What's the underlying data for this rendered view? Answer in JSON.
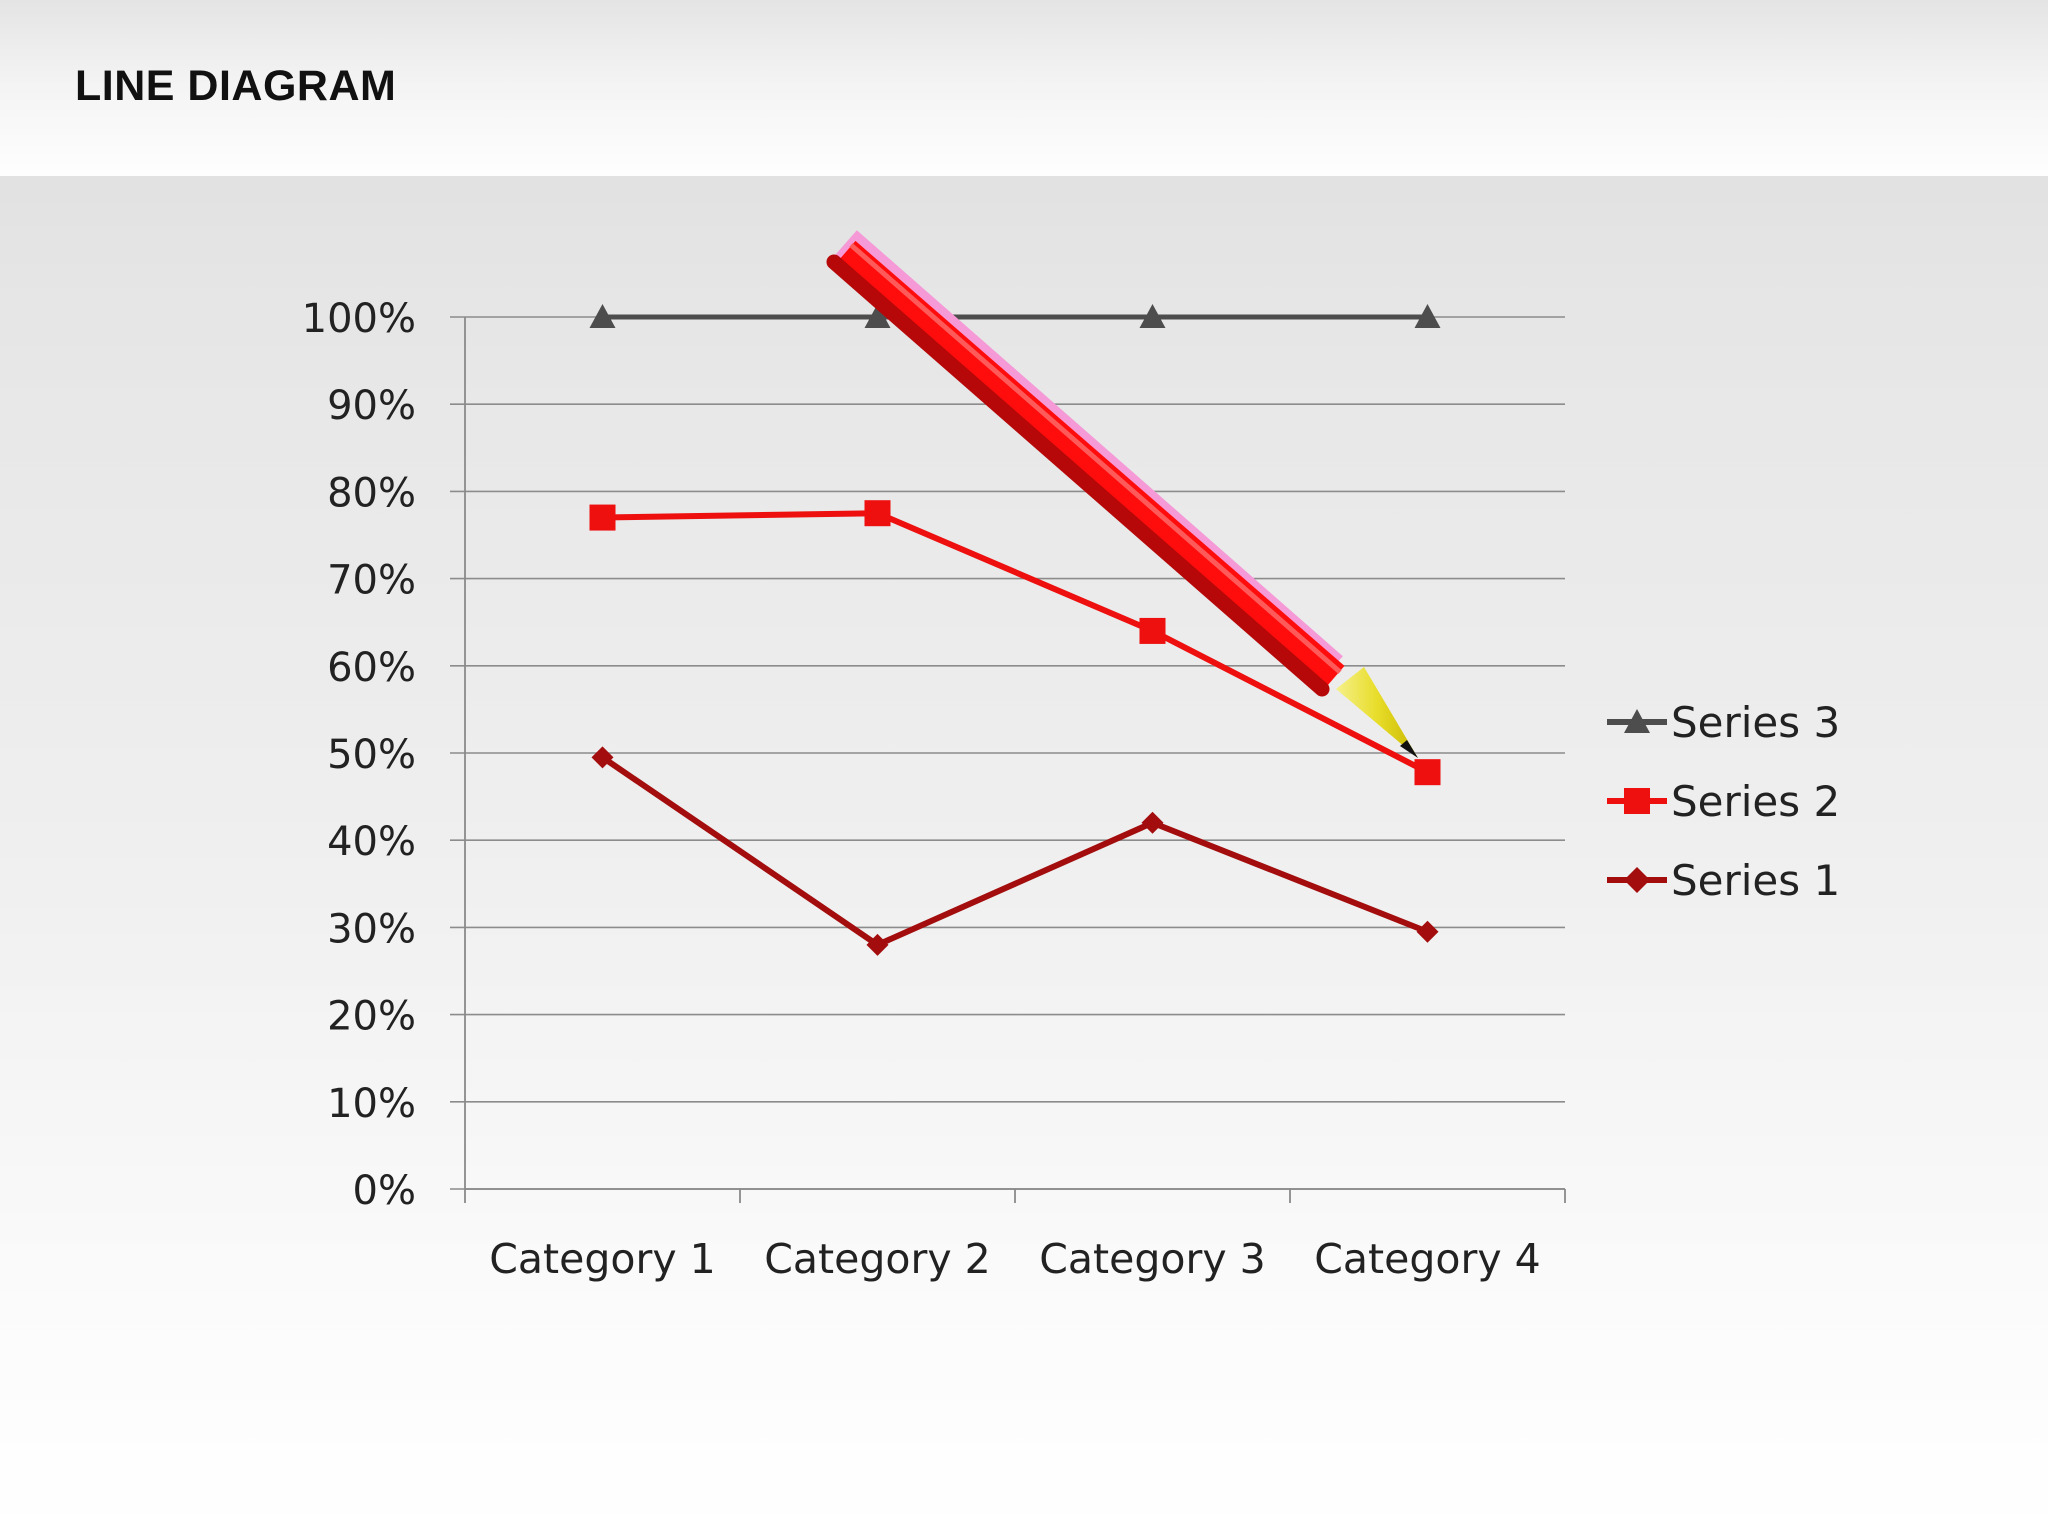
{
  "slide": {
    "title": "LINE DIAGRAM"
  },
  "chart_data": {
    "type": "line",
    "categories": [
      "Category 1",
      "Category 2",
      "Category 3",
      "Category 4"
    ],
    "series": [
      {
        "name": "Series 1",
        "values": [
          49.5,
          28,
          42,
          29.5
        ],
        "color": "#a30d0d",
        "marker": "diamond"
      },
      {
        "name": "Series 2",
        "values": [
          77,
          77.5,
          64,
          47.8
        ],
        "color": "#ee0f0f",
        "marker": "square"
      },
      {
        "name": "Series 3",
        "values": [
          100,
          100,
          100,
          100
        ],
        "color": "#4d4d4d",
        "marker": "triangle"
      }
    ],
    "y_ticks": [
      "0%",
      "10%",
      "20%",
      "30%",
      "40%",
      "50%",
      "60%",
      "70%",
      "80%",
      "90%",
      "100%"
    ],
    "ylim": [
      0,
      100
    ],
    "grid": true,
    "legend": "right",
    "legend_order": [
      "Series 3",
      "Series 2",
      "Series 1"
    ],
    "decoration": "red-pencil-icon"
  }
}
